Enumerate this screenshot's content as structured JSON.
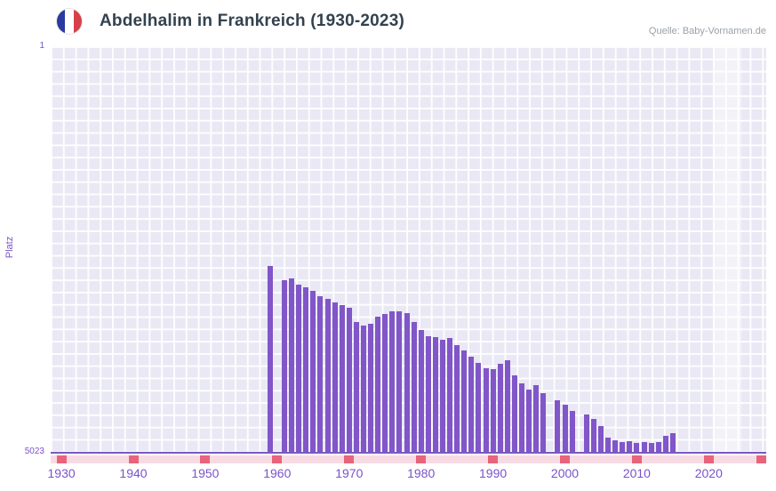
{
  "header": {
    "title": "Abdelhalim in Frankreich (1930-2023)",
    "source": "Quelle: Baby-Vornamen.de"
  },
  "chart_data": {
    "type": "bar",
    "title": "Abdelhalim in Frankreich (1930-2023)",
    "xlabel": "",
    "ylabel": "Platz",
    "y_axis": {
      "top_tick": "1",
      "bottom_tick": "5023",
      "min": 1,
      "max": 5023,
      "inverted": true
    },
    "x_axis": {
      "ticks": [
        1930,
        1940,
        1950,
        1960,
        1970,
        1980,
        1990,
        2000,
        2010,
        2020
      ],
      "range": [
        1928.5,
        2028
      ]
    },
    "bar_color": "#8156c8",
    "plot_bg": "#e9e8f4",
    "highlight_band": {
      "from": 2020.6,
      "to": 2024.6
    },
    "navigator": {
      "bg": "#f7dbe4",
      "mark_color": "#e8637c",
      "mark_years": [
        1930,
        1940,
        1950,
        1960,
        1970,
        1980,
        1990,
        2000,
        2010,
        2020
      ],
      "end_mark": true
    },
    "points": [
      [
        1959,
        2720
      ],
      [
        1961,
        2900
      ],
      [
        1962,
        2880
      ],
      [
        1963,
        2950
      ],
      [
        1964,
        2990
      ],
      [
        1965,
        3030
      ],
      [
        1966,
        3090
      ],
      [
        1967,
        3130
      ],
      [
        1968,
        3170
      ],
      [
        1969,
        3200
      ],
      [
        1970,
        3240
      ],
      [
        1971,
        3420
      ],
      [
        1972,
        3460
      ],
      [
        1973,
        3440
      ],
      [
        1974,
        3350
      ],
      [
        1975,
        3310
      ],
      [
        1976,
        3280
      ],
      [
        1977,
        3280
      ],
      [
        1978,
        3300
      ],
      [
        1979,
        3420
      ],
      [
        1980,
        3510
      ],
      [
        1981,
        3590
      ],
      [
        1982,
        3600
      ],
      [
        1983,
        3630
      ],
      [
        1984,
        3610
      ],
      [
        1985,
        3700
      ],
      [
        1986,
        3770
      ],
      [
        1987,
        3840
      ],
      [
        1988,
        3920
      ],
      [
        1989,
        3990
      ],
      [
        1990,
        4000
      ],
      [
        1991,
        3930
      ],
      [
        1992,
        3890
      ],
      [
        1993,
        4080
      ],
      [
        1994,
        4170
      ],
      [
        1995,
        4250
      ],
      [
        1996,
        4200
      ],
      [
        1997,
        4300
      ],
      [
        1999,
        4380
      ],
      [
        2000,
        4440
      ],
      [
        2001,
        4520
      ],
      [
        2003,
        4560
      ],
      [
        2004,
        4620
      ],
      [
        2005,
        4700
      ],
      [
        2006,
        4850
      ],
      [
        2007,
        4880
      ],
      [
        2008,
        4900
      ],
      [
        2009,
        4890
      ],
      [
        2010,
        4910
      ],
      [
        2011,
        4900
      ],
      [
        2012,
        4915
      ],
      [
        2013,
        4905
      ],
      [
        2014,
        4820
      ],
      [
        2015,
        4790
      ]
    ]
  }
}
